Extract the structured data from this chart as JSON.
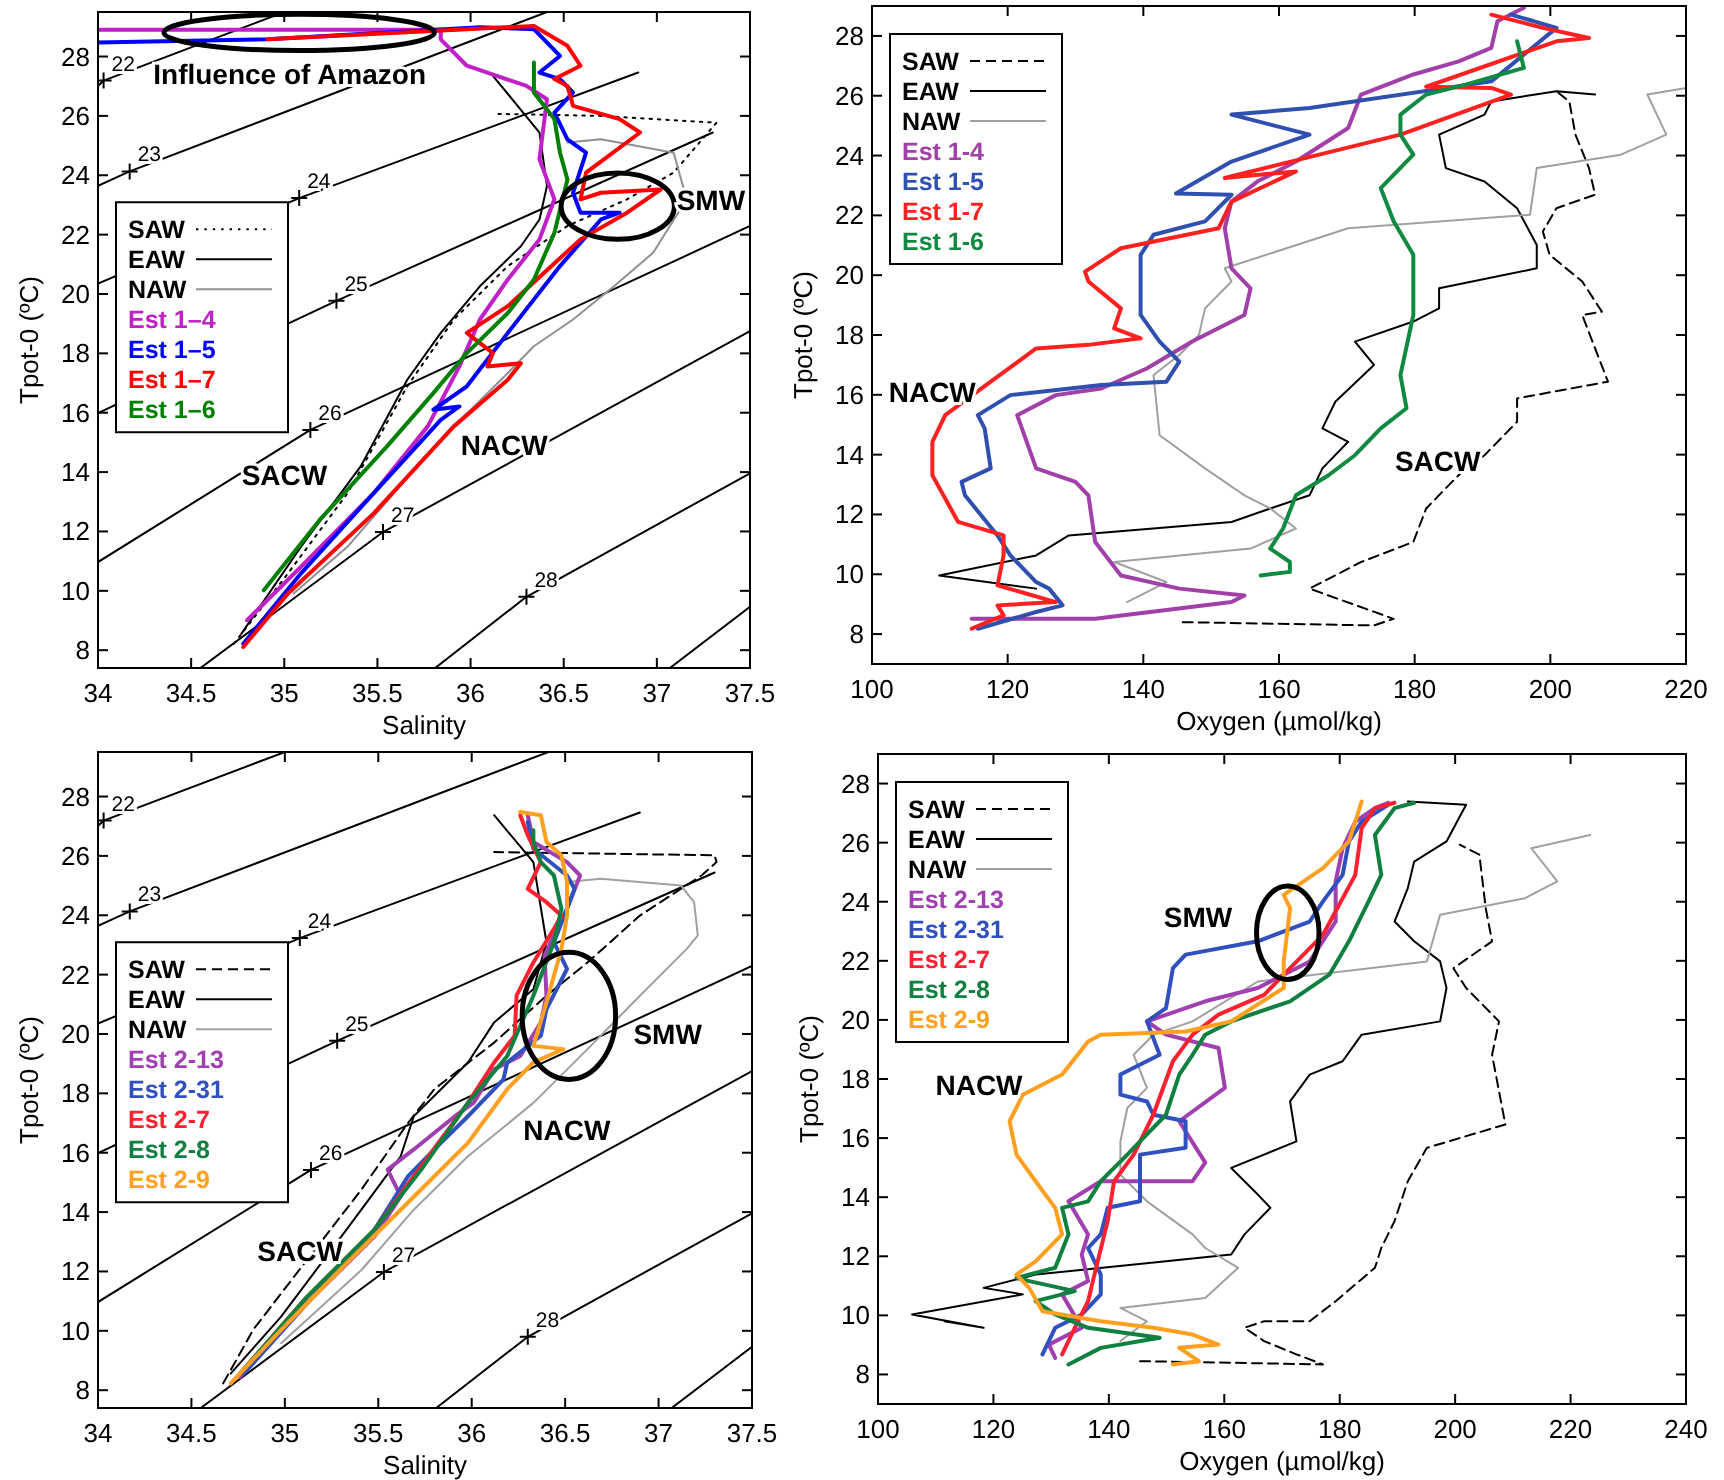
{
  "chart_data": [
    {
      "type": "line",
      "xlabel": "Salinity",
      "ylabel": "Tpot-0 (ºC)",
      "xlim": [
        34,
        37.5
      ],
      "ylim": [
        7.4,
        29.5
      ],
      "xticks": [
        34,
        34.5,
        35,
        35.5,
        36,
        36.5,
        37,
        37.5
      ],
      "yticks": [
        8,
        10,
        12,
        14,
        16,
        18,
        20,
        22,
        24,
        26,
        28
      ],
      "legend": "left",
      "series": [
        {
          "name": "SAW",
          "color": "#000000",
          "line_style": "dotted",
          "x": [
            34.73,
            35.02,
            35.34,
            35.66,
            35.91,
            36.2,
            36.52,
            36.84,
            37.09,
            37.32,
            36.7,
            36.12
          ],
          "values": [
            8.22,
            10.59,
            13.29,
            16.89,
            19.14,
            20.94,
            22.29,
            23.19,
            24.09,
            25.77,
            26.0,
            26.07
          ]
        },
        {
          "name": "EAW",
          "color": "#000000",
          "x": [
            34.77,
            35.09,
            35.41,
            35.66,
            35.84,
            36.05,
            36.27,
            36.37,
            36.41,
            36.37,
            36.12
          ],
          "values": [
            8.56,
            11.49,
            14.19,
            17.11,
            18.69,
            20.26,
            21.61,
            22.51,
            23.64,
            25.44,
            27.35
          ]
        },
        {
          "name": "NAW",
          "color": "#909090",
          "x": [
            35.05,
            35.34,
            35.62,
            35.91,
            36.2,
            36.34,
            36.55,
            36.77,
            36.98,
            37.16,
            37.09,
            36.7,
            36.52
          ],
          "values": [
            9.91,
            11.49,
            13.51,
            15.54,
            17.34,
            18.24,
            19.14,
            20.26,
            21.39,
            23.19,
            24.76,
            25.21,
            25.1
          ]
        },
        {
          "name": "Est 1–4",
          "color": "#c020c8",
          "x": [
            34.8,
            35.09,
            35.48,
            35.77,
            35.94,
            36.05,
            36.2,
            36.37,
            36.45,
            36.41,
            36.37,
            36.41,
            36.3,
            35.98,
            35.84,
            35.84,
            34.0
          ],
          "values": [
            9.01,
            10.81,
            13.29,
            15.54,
            17.56,
            19.14,
            20.49,
            21.84,
            23.19,
            23.86,
            24.54,
            26.56,
            27.01,
            27.69,
            28.58,
            28.9,
            28.9
          ]
        },
        {
          "name": "Est 1–5",
          "color": "#0000ff",
          "x": [
            34.78,
            35.09,
            35.48,
            35.84,
            35.94,
            35.8,
            35.98,
            36.2,
            36.48,
            36.7,
            36.8,
            36.59,
            36.55,
            36.62,
            36.52,
            36.45,
            36.55,
            36.48,
            36.37,
            36.48,
            36.34,
            36.05,
            34.91,
            34.0
          ],
          "values": [
            8.22,
            10.59,
            13.29,
            15.76,
            16.21,
            16.1,
            16.89,
            18.69,
            20.94,
            22.51,
            22.74,
            22.74,
            23.41,
            24.76,
            25.21,
            26.11,
            26.79,
            27.24,
            27.46,
            28.02,
            28.92,
            28.99,
            28.58,
            28.47
          ]
        },
        {
          "name": "Est 1–7",
          "color": "#ff0000",
          "x": [
            34.78,
            35.02,
            35.48,
            35.91,
            36.2,
            36.27,
            36.09,
            36.12,
            35.98,
            36.2,
            36.59,
            36.84,
            37.02,
            36.7,
            36.59,
            36.62,
            36.91,
            36.8,
            36.55,
            36.52,
            36.45,
            36.59,
            36.52,
            36.34,
            35.98,
            34.91
          ],
          "values": [
            8.11,
            9.91,
            12.61,
            15.54,
            17.11,
            17.67,
            17.56,
            18.01,
            18.69,
            19.59,
            21.84,
            22.74,
            23.52,
            23.41,
            23.19,
            24.09,
            25.44,
            25.89,
            26.34,
            27.01,
            27.24,
            27.69,
            28.36,
            29.03,
            28.92,
            28.58
          ]
        },
        {
          "name": "Est 1–6",
          "color": "#008000",
          "x": [
            34.89,
            35.19,
            35.55,
            35.8,
            35.98,
            36.2,
            36.34,
            36.45,
            36.52,
            36.48,
            36.45,
            36.34,
            36.34
          ],
          "values": [
            10.02,
            12.39,
            14.86,
            16.66,
            18.01,
            19.36,
            20.49,
            22.06,
            23.86,
            24.76,
            25.89,
            26.79,
            27.8
          ]
        },
        {
          "color": "#000000",
          "x": [
            34.0,
            34.03,
            35.0
          ],
          "values": [
            27.01,
            27.19,
            29.5
          ]
        },
        {
          "color": "#000000",
          "x": [
            34.0,
            34.17,
            36.41
          ],
          "values": [
            23.64,
            24.13,
            29.5
          ]
        },
        {
          "color": "#000000",
          "x": [
            34.0,
            35.08,
            36.9
          ],
          "values": [
            20.35,
            23.23,
            27.46
          ]
        },
        {
          "color": "#000000",
          "x": [
            34.0,
            35.28,
            37.3
          ],
          "values": [
            15.99,
            19.77,
            25.44
          ]
        },
        {
          "color": "#000000",
          "x": [
            34.0,
            35.14,
            37.5
          ],
          "values": [
            10.97,
            15.42,
            22.29
          ]
        },
        {
          "color": "#000000",
          "x": [
            34.55,
            35.53,
            37.5
          ],
          "values": [
            7.4,
            11.98,
            18.75
          ]
        },
        {
          "color": "#000000",
          "x": [
            35.81,
            36.3,
            37.5
          ],
          "values": [
            7.4,
            9.8,
            13.96
          ]
        },
        {
          "color": "#000000",
          "x": [
            37.07,
            37.5
          ],
          "values": [
            7.4,
            9.46
          ]
        },
        {
          "type": "scatter",
          "marker": "cross",
          "color": "#000000",
          "x": [
            34.03,
            34.17,
            35.08,
            35.28,
            35.14,
            35.53,
            36.3
          ],
          "values": [
            27.19,
            24.13,
            23.23,
            19.77,
            15.42,
            11.98,
            9.8
          ]
        }
      ],
      "annotations": [
        {
          "text": "22",
          "x": 34.03,
          "y": 27.19
        },
        {
          "text": "23",
          "x": 34.17,
          "y": 24.13
        },
        {
          "text": "24",
          "x": 35.08,
          "y": 23.23
        },
        {
          "text": "25",
          "x": 35.28,
          "y": 19.77
        },
        {
          "text": "26",
          "x": 35.14,
          "y": 15.42
        },
        {
          "text": "27",
          "x": 35.53,
          "y": 11.98
        },
        {
          "text": "28",
          "x": 36.3,
          "y": 9.8
        },
        "Influence of Amazon",
        "SMW",
        "NACW",
        "SACW"
      ]
    },
    {
      "type": "line",
      "xlabel": "Oxygen (µmol/kg)",
      "ylabel": "Tpot-0 (ºC)",
      "xlim": [
        100,
        220
      ],
      "ylim": [
        7,
        29
      ],
      "xticks": [
        100,
        120,
        140,
        160,
        180,
        200,
        220
      ],
      "yticks": [
        8,
        10,
        12,
        14,
        16,
        18,
        20,
        22,
        24,
        26,
        28
      ],
      "legend": "top left",
      "series": [
        {
          "name": "SAW",
          "color": "#000000",
          "line_style": "dashed",
          "x": [
            145.8,
            174.0,
            176.9,
            164.5,
            172.1,
            179.8,
            181.7,
            185.5,
            187.5,
            190.3,
            195.1,
            195.1,
            208.5,
            206.6,
            204.7,
            207.6,
            204.7,
            199.9,
            198.9,
            200.9,
            206.6,
            205.7,
            203.7,
            202.8,
            200.9
          ],
          "values": [
            8.4,
            8.29,
            8.51,
            9.52,
            10.41,
            11.08,
            12.2,
            13.09,
            13.54,
            13.98,
            15.1,
            15.88,
            16.44,
            17.55,
            18.67,
            18.78,
            19.79,
            20.68,
            21.46,
            22.24,
            22.69,
            23.58,
            24.7,
            25.81,
            26.15
          ]
        },
        {
          "name": "EAW",
          "color": "#000000",
          "x": [
            124.2,
            109.9,
            124.2,
            129.0,
            153.0,
            158.7,
            164.5,
            166.4,
            170.2,
            166.4,
            168.3,
            174.0,
            171.2,
            179.8,
            183.6,
            183.6,
            198.0,
            198.0,
            195.1,
            190.3,
            184.6,
            183.6,
            190.3,
            191.3,
            200.9,
            206.6
          ],
          "values": [
            9.52,
            9.96,
            10.63,
            11.3,
            11.75,
            12.2,
            12.64,
            13.54,
            14.43,
            14.88,
            15.77,
            17.0,
            17.78,
            18.45,
            18.89,
            19.56,
            20.23,
            21.01,
            22.24,
            23.13,
            23.58,
            24.7,
            25.37,
            25.81,
            26.15,
            26.04
          ]
        },
        {
          "name": "NAW",
          "color": "#a0a0a0",
          "x": [
            137.6,
            143.4,
            135.7,
            155.8,
            162.5,
            158.7,
            154.9,
            149.1,
            142.4,
            141.5,
            145.3,
            148.2,
            149.1,
            153.0,
            152.0,
            170.2,
            197.0,
            198.0,
            210.4,
            217.1,
            214.3,
            220.0
          ],
          "values": [
            9.07,
            9.74,
            10.41,
            10.86,
            11.53,
            12.2,
            12.64,
            13.54,
            14.65,
            16.66,
            17.33,
            18.0,
            18.89,
            19.79,
            20.23,
            21.57,
            22.02,
            23.58,
            24.03,
            24.7,
            26.04,
            26.26
          ]
        },
        {
          "name": "Est 1-4",
          "color": "#a040a8",
          "x": [
            114.7,
            132.9,
            153.0,
            154.9,
            145.3,
            136.7,
            132.9,
            131.9,
            130.0,
            124.2,
            121.4,
            127.1,
            133.8,
            140.5,
            147.2,
            154.9,
            155.8,
            153.0,
            152.0,
            153.0,
            156.8,
            162.5,
            170.2,
            172.1,
            179.8,
            186.5,
            191.3,
            192.2,
            196.1
          ],
          "values": [
            8.51,
            8.51,
            9.07,
            9.29,
            9.52,
            9.96,
            11.08,
            12.64,
            13.09,
            13.54,
            15.32,
            15.99,
            16.21,
            16.88,
            17.78,
            18.67,
            19.56,
            20.23,
            21.57,
            22.46,
            23.13,
            23.8,
            24.92,
            26.04,
            26.71,
            27.15,
            27.6,
            28.49,
            28.94
          ]
        },
        {
          "name": "Est 1-5",
          "color": "#3050b0",
          "x": [
            115.6,
            124.2,
            128.1,
            126.1,
            124.2,
            120.4,
            118.5,
            113.7,
            113.2,
            117.5,
            116.6,
            115.6,
            120.4,
            133.8,
            143.4,
            145.3,
            142.4,
            139.6,
            139.6,
            141.5,
            149.1,
            153.0,
            144.8,
            153.0,
            164.5,
            153.0,
            164.5,
            191.3,
            200.9,
            194.2
          ],
          "values": [
            8.18,
            8.74,
            8.96,
            9.52,
            9.74,
            10.63,
            11.3,
            12.64,
            13.09,
            13.54,
            14.88,
            15.32,
            15.99,
            16.33,
            16.44,
            17.11,
            17.78,
            18.67,
            20.68,
            21.35,
            21.8,
            22.69,
            22.73,
            23.8,
            24.7,
            25.37,
            25.59,
            26.48,
            28.27,
            28.71
          ]
        },
        {
          "name": "Est 1-7",
          "color": "#ff2020",
          "x": [
            114.7,
            119.4,
            118.5,
            127.1,
            118.5,
            119.4,
            119.4,
            112.7,
            108.9,
            108.9,
            110.8,
            117.5,
            124.2,
            131.9,
            139.6,
            135.7,
            136.7,
            131.9,
            131.4,
            136.7,
            151.1,
            153.0,
            162.5,
            152.0,
            177.9,
            194.2,
            191.3,
            181.7,
            200.9,
            205.7,
            198.9,
            191.3
          ],
          "values": [
            8.18,
            8.63,
            8.96,
            9.07,
            9.63,
            10.63,
            11.3,
            11.75,
            13.31,
            14.43,
            15.32,
            16.44,
            17.55,
            17.67,
            17.89,
            18.22,
            18.89,
            19.79,
            20.12,
            20.9,
            21.57,
            22.46,
            23.47,
            23.25,
            24.7,
            26.04,
            26.26,
            26.3,
            27.82,
            27.93,
            28.27,
            28.71
          ]
        },
        {
          "name": "Est 1-6",
          "color": "#108a40",
          "x": [
            157.3,
            161.6,
            161.6,
            158.7,
            160.6,
            162.5,
            167.3,
            171.2,
            175.0,
            178.8,
            177.9,
            179.8,
            179.8,
            176.9,
            175.0,
            179.8,
            177.9,
            177.9,
            181.7,
            187.5,
            196.1,
            195.1
          ],
          "values": [
            9.96,
            10.08,
            10.41,
            10.86,
            11.53,
            12.64,
            13.31,
            13.98,
            14.88,
            15.55,
            16.66,
            18.67,
            20.68,
            21.8,
            22.91,
            24.03,
            24.7,
            25.37,
            26.04,
            26.37,
            26.93,
            27.82
          ]
        }
      ],
      "annotations": [
        "NACW",
        "SACW"
      ]
    },
    {
      "type": "line",
      "xlabel": "Salinity",
      "ylabel": "Tpot-0 (ºC)",
      "xlim": [
        34,
        37.5
      ],
      "ylim": [
        7.4,
        29.5
      ],
      "xticks": [
        34,
        34.5,
        35,
        35.5,
        36,
        36.5,
        37,
        37.5
      ],
      "yticks": [
        8,
        10,
        12,
        14,
        16,
        18,
        20,
        22,
        24,
        26,
        28
      ],
      "legend": "left",
      "series": [
        {
          "name": "SAW",
          "color": "#000000",
          "line_style": "dashed",
          "x": [
            34.67,
            34.83,
            35.05,
            35.41,
            35.66,
            35.8,
            36.12,
            36.4,
            36.62,
            36.9,
            37.23,
            37.31,
            37.3,
            36.12
          ],
          "values": [
            8.23,
            10.03,
            11.83,
            14.76,
            17.01,
            18.14,
            19.71,
            21.29,
            22.41,
            23.99,
            25.34,
            25.79,
            26.02,
            26.13
          ]
        },
        {
          "name": "EAW",
          "color": "#000000",
          "x": [
            34.71,
            34.98,
            35.33,
            35.62,
            35.69,
            35.98,
            36.12,
            36.33,
            36.4,
            36.33,
            36.12
          ],
          "values": [
            8.56,
            10.48,
            13.41,
            15.88,
            17.23,
            19.04,
            20.39,
            21.51,
            23.09,
            25.79,
            27.37
          ]
        },
        {
          "name": "NAW",
          "color": "#a0a0a0",
          "x": [
            34.98,
            35.41,
            35.69,
            35.98,
            36.33,
            36.62,
            36.9,
            37.15,
            37.21,
            37.19,
            37.12,
            36.69,
            36.51
          ],
          "values": [
            9.58,
            12.05,
            14.08,
            15.88,
            17.68,
            19.49,
            21.29,
            22.86,
            23.32,
            24.44,
            25.0,
            25.23,
            25.12
          ]
        },
        {
          "name": "Est 2-13",
          "color": "#a040b0",
          "x": [
            34.76,
            35.08,
            35.48,
            35.62,
            35.55,
            35.69,
            35.91,
            36.01,
            36.12,
            36.26,
            36.37,
            36.4,
            36.39,
            36.44,
            36.51,
            36.58,
            36.51,
            36.33,
            36.3
          ],
          "values": [
            8.45,
            10.7,
            13.18,
            14.53,
            15.43,
            16.11,
            17.23,
            17.68,
            18.81,
            19.26,
            20.39,
            21.29,
            22.64,
            23.32,
            24.22,
            25.34,
            25.79,
            26.47,
            27.37
          ]
        },
        {
          "name": "Est 2-31",
          "color": "#3050c0",
          "x": [
            34.78,
            35.12,
            35.48,
            35.66,
            35.8,
            35.98,
            36.12,
            36.17,
            36.19,
            36.37,
            36.4,
            36.51,
            36.44,
            36.51,
            36.55,
            36.51,
            36.33,
            36.3
          ],
          "values": [
            8.56,
            10.93,
            13.41,
            15.21,
            16.11,
            17.23,
            18.14,
            18.47,
            19.04,
            19.94,
            20.84,
            22.19,
            23.09,
            24.22,
            24.89,
            25.34,
            26.24,
            27.14
          ]
        },
        {
          "name": "Est 2-7",
          "color": "#ff2030",
          "x": [
            34.76,
            35.12,
            35.48,
            35.69,
            35.98,
            36.12,
            36.23,
            36.24,
            36.33,
            36.44,
            36.48,
            36.4,
            36.3,
            36.37,
            36.3,
            36.26
          ],
          "values": [
            8.56,
            11.15,
            13.41,
            15.21,
            17.68,
            19.04,
            19.94,
            21.29,
            22.41,
            23.54,
            23.99,
            24.44,
            24.89,
            25.79,
            26.69,
            27.37
          ]
        },
        {
          "name": "Est 2-8",
          "color": "#108040",
          "x": [
            34.76,
            35.12,
            35.48,
            35.73,
            35.98,
            36.19,
            36.33,
            36.44,
            36.48,
            36.44,
            36.37,
            36.33,
            36.33
          ],
          "values": [
            8.56,
            11.15,
            13.41,
            15.43,
            17.68,
            19.26,
            21.29,
            23.09,
            24.22,
            25.34,
            25.79,
            26.47,
            26.86
          ]
        },
        {
          "name": "Est 2-9",
          "color": "#ffa020",
          "x": [
            34.71,
            34.98,
            35.33,
            35.62,
            35.98,
            36.19,
            36.33,
            36.49,
            36.33,
            36.4,
            36.48,
            36.51,
            36.51,
            36.48,
            36.4,
            36.37,
            36.26
          ],
          "values": [
            8.23,
            10.03,
            12.28,
            14.08,
            16.33,
            18.14,
            19.04,
            19.49,
            19.6,
            21.06,
            22.86,
            23.99,
            25.12,
            26.02,
            26.47,
            27.37,
            27.48
          ]
        },
        {
          "color": "#000000",
          "x": [
            34.0,
            34.03,
            35.0
          ],
          "values": [
            27.01,
            27.19,
            29.5
          ]
        },
        {
          "color": "#000000",
          "x": [
            34.0,
            34.17,
            36.41
          ],
          "values": [
            23.64,
            24.13,
            29.5
          ]
        },
        {
          "color": "#000000",
          "x": [
            34.0,
            35.08,
            36.9
          ],
          "values": [
            20.35,
            23.23,
            27.46
          ]
        },
        {
          "color": "#000000",
          "x": [
            34.0,
            35.28,
            37.3
          ],
          "values": [
            15.99,
            19.77,
            25.44
          ]
        },
        {
          "color": "#000000",
          "x": [
            34.0,
            35.14,
            37.5
          ],
          "values": [
            10.97,
            15.42,
            22.29
          ]
        },
        {
          "color": "#000000",
          "x": [
            34.55,
            35.53,
            37.5
          ],
          "values": [
            7.4,
            11.98,
            18.75
          ]
        },
        {
          "color": "#000000",
          "x": [
            35.81,
            36.3,
            37.5
          ],
          "values": [
            7.4,
            9.8,
            13.96
          ]
        },
        {
          "color": "#000000",
          "x": [
            37.07,
            37.5
          ],
          "values": [
            7.4,
            9.46
          ]
        },
        {
          "type": "scatter",
          "marker": "cross",
          "color": "#000000",
          "x": [
            34.03,
            34.17,
            35.08,
            35.28,
            35.14,
            35.53,
            36.3
          ],
          "values": [
            27.19,
            24.13,
            23.23,
            19.77,
            15.42,
            11.98,
            9.8
          ]
        }
      ],
      "annotations": [
        {
          "text": "22",
          "x": 34.03,
          "y": 27.19
        },
        {
          "text": "23",
          "x": 34.17,
          "y": 24.13
        },
        {
          "text": "24",
          "x": 35.08,
          "y": 23.23
        },
        {
          "text": "25",
          "x": 35.28,
          "y": 19.77
        },
        {
          "text": "26",
          "x": 35.14,
          "y": 15.42
        },
        {
          "text": "27",
          "x": 35.53,
          "y": 11.98
        },
        {
          "text": "28",
          "x": 36.3,
          "y": 9.8
        },
        "SMW",
        "NACW",
        "SACW"
      ]
    },
    {
      "type": "line",
      "xlabel": "Oxygen (µmol/kg)",
      "ylabel": "Tpot-0 (ºC)",
      "xlim": [
        100,
        240
      ],
      "ylim": [
        7,
        29
      ],
      "xticks": [
        100,
        120,
        140,
        160,
        180,
        200,
        220,
        240
      ],
      "yticks": [
        8,
        10,
        12,
        14,
        16,
        18,
        20,
        22,
        24,
        26,
        28
      ],
      "legend": "top left",
      "series": [
        {
          "name": "SAW",
          "color": "#000000",
          "line_style": "dashed",
          "x": [
            145.4,
            177.1,
            172.5,
            166.9,
            163.5,
            166.9,
            174.8,
            179.3,
            186.1,
            187.2,
            189.5,
            191.8,
            195.1,
            208.7,
            206.4,
            207.6,
            201.9,
            199.7,
            206.4,
            205.3,
            204.2,
            200.8
          ],
          "values": [
            8.45,
            8.34,
            8.68,
            9.13,
            9.58,
            9.8,
            9.8,
            10.48,
            11.61,
            12.28,
            13.19,
            14.54,
            15.67,
            16.46,
            18.82,
            19.95,
            21.08,
            21.75,
            22.66,
            23.78,
            25.59,
            25.93
          ]
        },
        {
          "name": "EAW",
          "color": "#000000",
          "x": [
            111.5,
            118.3,
            105.9,
            125.1,
            118.3,
            127.3,
            149.9,
            161.2,
            163.5,
            168.0,
            165.8,
            161.2,
            172.5,
            171.4,
            174.8,
            180.5,
            183.8,
            197.4,
            198.5,
            197.4,
            192.9,
            189.5,
            191.8,
            192.9,
            198.5,
            201.9,
            191.8
          ],
          "values": [
            9.8,
            9.58,
            10.03,
            10.71,
            10.93,
            11.38,
            11.83,
            12.06,
            12.74,
            13.64,
            14.09,
            14.99,
            15.89,
            17.24,
            18.15,
            18.6,
            19.5,
            19.95,
            21.08,
            21.98,
            22.66,
            23.33,
            24.46,
            25.36,
            26.04,
            27.28,
            27.39
          ]
        },
        {
          "name": "NAW",
          "color": "#a0a0a0",
          "x": [
            142.0,
            146.6,
            142.0,
            156.7,
            162.4,
            156.7,
            154.5,
            146.6,
            142.0,
            142.0,
            143.2,
            146.6,
            144.3,
            147.7,
            154.5,
            165.8,
            195.1,
            197.4,
            212.1,
            217.7,
            213.2,
            223.4
          ],
          "values": [
            9.13,
            9.8,
            10.25,
            10.59,
            11.61,
            12.28,
            12.74,
            13.86,
            14.76,
            15.89,
            17.02,
            17.7,
            18.82,
            19.5,
            19.95,
            21.3,
            21.98,
            23.56,
            24.12,
            24.69,
            25.81,
            26.26
          ]
        },
        {
          "name": "Est 2-13",
          "color": "#a040b0",
          "x": [
            130.7,
            129.6,
            135.3,
            131.9,
            136.4,
            135.3,
            136.4,
            133.0,
            138.6,
            154.5,
            156.7,
            152.2,
            160.1,
            159.0,
            149.9,
            146.6,
            156.7,
            165.8,
            174.8,
            179.3,
            179.3,
            180.5,
            182.7,
            186.1,
            188.4
          ],
          "values": [
            8.56,
            9.01,
            9.58,
            10.71,
            11.16,
            12.06,
            12.74,
            13.86,
            14.54,
            14.54,
            15.17,
            16.57,
            17.7,
            19.05,
            19.5,
            19.95,
            20.63,
            21.08,
            21.98,
            23.33,
            24.69,
            25.81,
            26.71,
            27.17,
            27.35
          ]
        },
        {
          "name": "Est 2-31",
          "color": "#3050c0",
          "x": [
            128.5,
            130.7,
            135.3,
            138.6,
            138.6,
            136.4,
            138.6,
            139.8,
            145.4,
            145.4,
            153.3,
            153.3,
            147.7,
            146.6,
            142.0,
            142.0,
            148.8,
            146.6,
            149.9,
            151.1,
            153.3,
            165.8,
            174.8,
            177.1,
            180.5,
            181.6,
            183.8,
            188.4
          ],
          "values": [
            8.68,
            9.58,
            10.03,
            10.71,
            11.38,
            12.28,
            12.74,
            13.64,
            13.86,
            15.44,
            15.67,
            16.57,
            16.79,
            17.24,
            17.47,
            18.15,
            18.82,
            19.95,
            20.4,
            21.75,
            22.21,
            22.66,
            23.33,
            24.01,
            24.91,
            26.04,
            26.71,
            27.28
          ]
        },
        {
          "name": "Est 2-7",
          "color": "#ff2030",
          "x": [
            131.9,
            134.1,
            136.4,
            137.5,
            139.8,
            140.9,
            144.3,
            147.7,
            151.1,
            154.5,
            159.0,
            166.9,
            171.4,
            177.1,
            182.7,
            183.8,
            186.1,
            189.5
          ],
          "values": [
            8.68,
            9.58,
            10.48,
            11.38,
            13.19,
            14.54,
            15.44,
            16.79,
            18.6,
            19.5,
            20.18,
            20.85,
            21.75,
            22.88,
            24.91,
            26.49,
            27.17,
            27.35
          ]
        },
        {
          "name": "Est 2-8",
          "color": "#108040",
          "x": [
            133.0,
            138.6,
            148.8,
            136.4,
            130.7,
            127.3,
            134.1,
            126.2,
            124.0,
            130.7,
            133.0,
            131.9,
            136.4,
            138.6,
            143.2,
            145.4,
            149.9,
            152.2,
            154.5,
            156.7,
            161.2,
            171.4,
            178.2,
            181.6,
            185.0,
            187.2,
            186.1,
            189.5,
            192.9
          ],
          "values": [
            8.34,
            8.9,
            9.24,
            9.58,
            10.03,
            10.48,
            10.82,
            11.16,
            11.27,
            11.61,
            12.74,
            13.64,
            13.86,
            14.54,
            15.44,
            15.89,
            16.79,
            18.15,
            18.82,
            19.5,
            19.95,
            20.63,
            21.53,
            22.66,
            24.01,
            24.91,
            26.26,
            27.17,
            27.35
          ]
        },
        {
          "name": "Est 2-9",
          "color": "#ffa020",
          "x": [
            151.1,
            155.6,
            152.2,
            159.0,
            154.5,
            147.7,
            138.6,
            128.5,
            126.2,
            124.0,
            127.3,
            131.9,
            130.7,
            127.3,
            124.0,
            122.8,
            125.1,
            131.9,
            136.4,
            138.6,
            153.3,
            161.2,
            170.3,
            170.3,
            171.4,
            170.3,
            177.1,
            181.6,
            182.7,
            183.8
          ],
          "values": [
            8.34,
            8.45,
            8.9,
            9.01,
            9.35,
            9.58,
            9.8,
            10.14,
            10.93,
            11.38,
            11.83,
            12.74,
            13.64,
            14.54,
            15.44,
            16.57,
            17.47,
            18.15,
            19.27,
            19.5,
            19.61,
            19.95,
            21.08,
            21.98,
            23.78,
            24.23,
            25.14,
            26.04,
            26.71,
            27.39
          ]
        }
      ],
      "annotations": [
        "SMW",
        "NACW"
      ]
    }
  ]
}
